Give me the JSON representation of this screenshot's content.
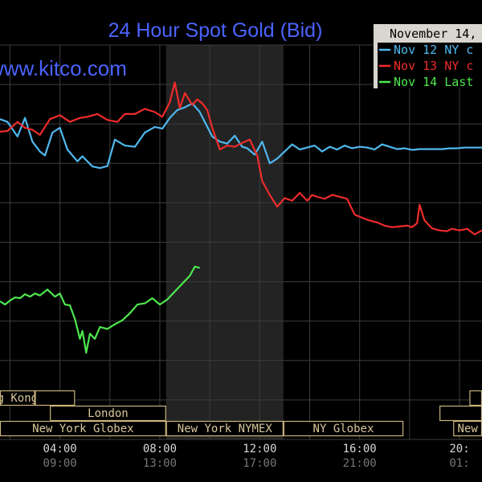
{
  "chart_data": {
    "type": "line",
    "title": "24 Hour Spot Gold (Bid)",
    "brand": "www.kitco.com",
    "date_label": "November 14,",
    "x_ticks": [
      {
        "x": 4,
        "label": "04:00",
        "alt": "09:00"
      },
      {
        "x": 8,
        "label": "08:00",
        "alt": "13:00"
      },
      {
        "x": 12,
        "label": "12:00",
        "alt": "17:00"
      },
      {
        "x": 16,
        "label": "16:00",
        "alt": "21:00"
      },
      {
        "x": 20,
        "label": "20:",
        "alt": "01:"
      }
    ],
    "xlim": [
      1.6,
      20.9
    ],
    "ylim": [
      0,
      10
    ],
    "shaded_region": [
      8.25,
      12.95
    ],
    "sessions": [
      {
        "label": "g Kong",
        "row": 1,
        "start": 1.6,
        "end": 3.0
      },
      {
        "label": "",
        "row": 1,
        "start": 3.0,
        "end": 4.6
      },
      {
        "label": "",
        "row": 1,
        "start": 20.4,
        "end": 20.9
      },
      {
        "label": "London",
        "row": 2,
        "start": 3.6,
        "end": 8.25
      },
      {
        "label": "",
        "row": 2,
        "start": 19.2,
        "end": 20.9
      },
      {
        "label": "New York Globex",
        "row": 3,
        "start": 1.6,
        "end": 8.25
      },
      {
        "label": "New York NYMEX",
        "row": 3,
        "start": 8.25,
        "end": 12.95
      },
      {
        "label": "NY Globex",
        "row": 3,
        "start": 12.95,
        "end": 17.75
      },
      {
        "label": "New",
        "row": 3,
        "start": 19.75,
        "end": 20.9
      }
    ],
    "legend": {
      "position": "top-right",
      "entries": [
        {
          "label": "Nov 12 NY c",
          "color": "#4fb8ee"
        },
        {
          "label": "Nov 13 NY c",
          "color": "#ee2b2b"
        },
        {
          "label": "Nov 14 Last",
          "color": "#4ee84e"
        }
      ]
    },
    "series": [
      {
        "name": "Nov 12 NY c",
        "color": "#4fb8ee",
        "x": [
          1.6,
          1.9,
          2.3,
          2.6,
          2.9,
          3.2,
          3.4,
          3.7,
          4.0,
          4.3,
          4.7,
          4.9,
          5.3,
          5.6,
          5.9,
          6.2,
          6.6,
          7.0,
          7.4,
          7.8,
          8.1,
          8.4,
          8.7,
          9.0,
          9.3,
          9.6,
          9.8,
          10.1,
          10.4,
          10.7,
          11.0,
          11.3,
          11.5,
          11.8,
          12.1,
          12.4,
          12.7,
          13.0,
          13.3,
          13.6,
          13.9,
          14.2,
          14.5,
          14.8,
          15.1,
          15.4,
          15.7,
          16.0,
          16.3,
          16.6,
          16.9,
          17.2,
          17.5,
          17.8,
          18.1,
          18.4,
          18.7,
          19.0,
          19.3,
          19.6,
          19.9,
          20.2,
          20.5,
          20.9
        ],
        "y": [
          8.12,
          8.05,
          7.68,
          8.15,
          7.55,
          7.3,
          7.2,
          7.78,
          7.9,
          7.35,
          7.05,
          7.18,
          6.92,
          6.88,
          6.93,
          7.6,
          7.45,
          7.42,
          7.78,
          7.92,
          7.88,
          8.15,
          8.35,
          8.42,
          8.52,
          8.3,
          8.05,
          7.68,
          7.55,
          7.5,
          7.7,
          7.42,
          7.38,
          7.22,
          7.55,
          7.0,
          7.12,
          7.3,
          7.48,
          7.35,
          7.4,
          7.45,
          7.3,
          7.42,
          7.35,
          7.45,
          7.38,
          7.42,
          7.4,
          7.35,
          7.48,
          7.42,
          7.36,
          7.38,
          7.34,
          7.36,
          7.36,
          7.36,
          7.36,
          7.38,
          7.38,
          7.4,
          7.4,
          7.4
        ]
      },
      {
        "name": "Nov 13 NY c",
        "color": "#ee2b2b",
        "x": [
          1.6,
          1.9,
          2.3,
          2.6,
          2.9,
          3.2,
          3.6,
          4.0,
          4.4,
          4.8,
          5.1,
          5.5,
          5.9,
          6.3,
          6.6,
          7.0,
          7.4,
          7.8,
          8.1,
          8.4,
          8.6,
          8.8,
          9.0,
          9.3,
          9.5,
          9.7,
          9.9,
          10.1,
          10.4,
          10.7,
          11.0,
          11.3,
          11.6,
          11.9,
          12.1,
          12.4,
          12.7,
          13.0,
          13.3,
          13.6,
          13.9,
          14.1,
          14.3,
          14.6,
          14.9,
          15.2,
          15.5,
          15.8,
          16.1,
          16.4,
          16.7,
          17.0,
          17.3,
          17.6,
          17.9,
          18.1,
          18.3,
          18.4,
          18.6,
          18.9,
          19.2,
          19.5,
          19.7,
          20.0,
          20.3,
          20.6,
          20.9
        ],
        "y": [
          7.8,
          7.82,
          8.05,
          7.9,
          7.85,
          7.72,
          8.12,
          8.22,
          8.05,
          8.15,
          8.18,
          8.25,
          8.1,
          8.05,
          8.25,
          8.25,
          8.38,
          8.3,
          8.18,
          8.55,
          9.05,
          8.4,
          8.78,
          8.48,
          8.62,
          8.52,
          8.35,
          7.9,
          7.35,
          7.45,
          7.42,
          7.52,
          7.6,
          7.2,
          6.55,
          6.2,
          5.9,
          6.12,
          6.05,
          6.25,
          6.05,
          6.2,
          6.15,
          6.1,
          6.2,
          6.15,
          6.1,
          5.7,
          5.62,
          5.55,
          5.5,
          5.42,
          5.38,
          5.4,
          5.42,
          5.38,
          5.48,
          5.95,
          5.55,
          5.35,
          5.3,
          5.28,
          5.34,
          5.3,
          5.34,
          5.2,
          5.3
        ]
      },
      {
        "name": "Nov 14 Last",
        "color": "#4ee84e",
        "x": [
          1.6,
          1.8,
          2.0,
          2.2,
          2.4,
          2.6,
          2.8,
          3.0,
          3.2,
          3.5,
          3.8,
          4.0,
          4.2,
          4.4,
          4.6,
          4.8,
          4.9,
          5.05,
          5.2,
          5.4,
          5.6,
          5.9,
          6.2,
          6.5,
          6.8,
          7.1,
          7.4,
          7.7,
          8.0,
          8.3,
          8.6,
          8.9,
          9.2,
          9.4,
          9.6
        ],
        "y": [
          3.5,
          3.42,
          3.52,
          3.6,
          3.58,
          3.68,
          3.62,
          3.7,
          3.65,
          3.8,
          3.62,
          3.7,
          3.42,
          3.4,
          3.05,
          2.55,
          2.75,
          2.2,
          2.68,
          2.55,
          2.85,
          2.8,
          2.92,
          3.02,
          3.2,
          3.42,
          3.45,
          3.58,
          3.42,
          3.55,
          3.75,
          3.95,
          4.15,
          4.38,
          4.35
        ]
      }
    ]
  }
}
